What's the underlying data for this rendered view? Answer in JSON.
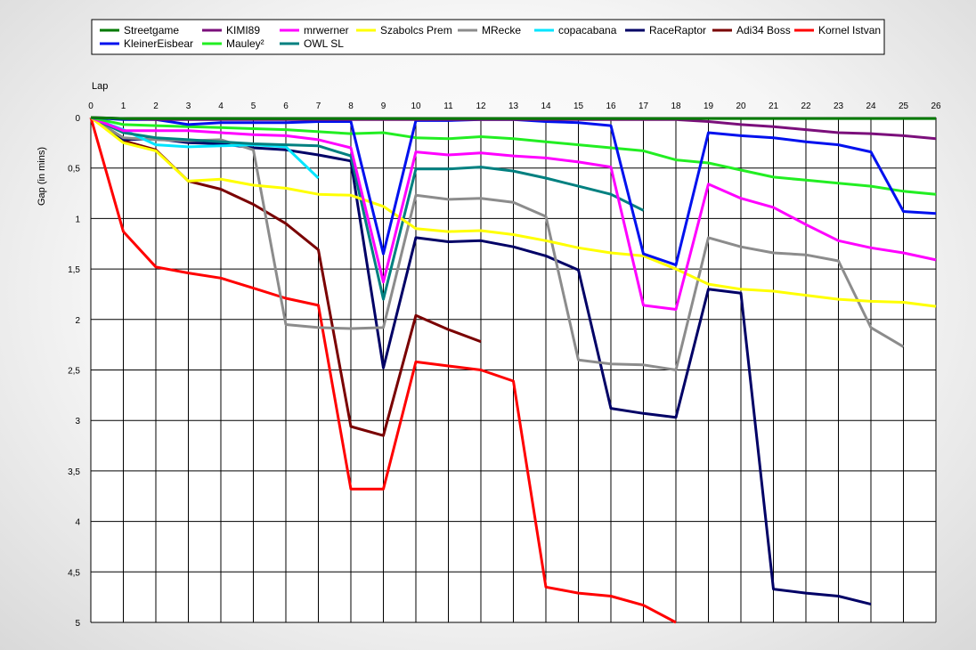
{
  "chart_data": {
    "type": "line",
    "xlabel": "Lap",
    "ylabel": "Gap (in mins)",
    "x": [
      0,
      1,
      2,
      3,
      4,
      5,
      6,
      7,
      8,
      9,
      10,
      11,
      12,
      13,
      14,
      15,
      16,
      17,
      18,
      19,
      20,
      21,
      22,
      23,
      24,
      25,
      26
    ],
    "xlim": [
      0,
      26
    ],
    "ylim": [
      0,
      5
    ],
    "y_inverted": true,
    "y_ticks": [
      "0",
      "0,5",
      "1",
      "1,5",
      "2",
      "2,5",
      "3",
      "3,5",
      "4",
      "4,5",
      "5"
    ],
    "x_ticks": [
      "0",
      "1",
      "2",
      "3",
      "4",
      "5",
      "6",
      "7",
      "8",
      "9",
      "10",
      "11",
      "12",
      "13",
      "14",
      "15",
      "16",
      "17",
      "18",
      "19",
      "20",
      "21",
      "22",
      "23",
      "24",
      "25",
      "26"
    ],
    "grid": true,
    "legend_position": "top",
    "series": [
      {
        "name": "Streetgame",
        "color": "#007a00",
        "values": [
          0,
          0.01,
          0.01,
          0.01,
          0.01,
          0.01,
          0.01,
          0.01,
          0.01,
          0.01,
          0.01,
          0.01,
          0.01,
          0.01,
          0.01,
          0.01,
          0.01,
          0.01,
          0.01,
          0.01,
          0.01,
          0.01,
          0.01,
          0.01,
          0.01,
          0.01,
          0.01
        ]
      },
      {
        "name": "KIMI89",
        "color": "#7b0f7b",
        "values": [
          0,
          0.01,
          0.02,
          0.02,
          0.02,
          0.02,
          0.02,
          0.02,
          0.02,
          0.02,
          0.02,
          0.02,
          0.02,
          0.02,
          0.02,
          0.02,
          0.02,
          0.02,
          0.02,
          0.04,
          0.07,
          0.09,
          0.12,
          0.15,
          0.16,
          0.18,
          0.21
        ]
      },
      {
        "name": "mrwerner",
        "color": "#ff00ff",
        "values": [
          0,
          0.13,
          0.13,
          0.13,
          0.15,
          0.17,
          0.18,
          0.22,
          0.3,
          1.63,
          0.34,
          0.37,
          0.35,
          0.38,
          0.4,
          0.44,
          0.49,
          1.86,
          1.9,
          0.66,
          0.8,
          0.89,
          1.06,
          1.22,
          1.29,
          1.34,
          1.41
        ]
      },
      {
        "name": "Szabolcs Prem",
        "color": "#ffff00",
        "values": [
          0,
          0.25,
          0.33,
          0.63,
          0.61,
          0.67,
          0.7,
          0.76,
          0.77,
          0.88,
          1.1,
          1.13,
          1.12,
          1.16,
          1.22,
          1.29,
          1.34,
          1.37,
          1.5,
          1.65,
          1.7,
          1.72,
          1.76,
          1.8,
          1.82,
          1.83,
          1.87
        ]
      },
      {
        "name": "MRecke",
        "color": "#8c8c8c",
        "values": [
          0,
          0.2,
          0.22,
          0.23,
          0.22,
          0.32,
          2.05,
          2.08,
          2.09,
          2.08,
          0.77,
          0.81,
          0.8,
          0.84,
          0.98,
          2.4,
          2.44,
          2.45,
          2.5,
          1.19,
          1.28,
          1.34,
          1.36,
          1.42,
          2.08,
          2.27,
          null
        ]
      },
      {
        "name": "copacabana",
        "color": "#00e5ff",
        "values": [
          0,
          0.12,
          0.27,
          0.29,
          0.28,
          0.27,
          0.29,
          0.6,
          null,
          null,
          null,
          null,
          null,
          null,
          null,
          null,
          null,
          null,
          null,
          null,
          null,
          null,
          null,
          null,
          null,
          null,
          null
        ]
      },
      {
        "name": "RaceRaptor",
        "color": "#000066",
        "values": [
          0,
          0.22,
          0.21,
          0.25,
          0.26,
          0.3,
          0.32,
          0.37,
          0.43,
          2.48,
          1.19,
          1.23,
          1.22,
          1.28,
          1.37,
          1.51,
          2.88,
          2.93,
          2.97,
          1.7,
          1.74,
          4.67,
          4.71,
          4.74,
          4.82,
          null,
          null
        ]
      },
      {
        "name": "Adi34 Boss",
        "color": "#7a0000",
        "values": [
          0,
          0.23,
          0.32,
          0.63,
          0.71,
          0.86,
          1.05,
          1.31,
          3.06,
          3.15,
          1.96,
          2.1,
          2.22,
          null,
          null,
          null,
          null,
          null,
          null,
          null,
          null,
          null,
          null,
          null,
          null,
          null,
          null
        ]
      },
      {
        "name": "Kornel Istvan",
        "color": "#ff0000",
        "values": [
          0,
          1.13,
          1.48,
          1.54,
          1.59,
          1.69,
          1.79,
          1.86,
          3.68,
          3.68,
          2.42,
          2.46,
          2.5,
          2.61,
          4.65,
          4.71,
          4.74,
          4.83,
          5.0,
          null,
          null,
          null,
          null,
          null,
          null,
          null,
          null
        ]
      },
      {
        "name": "KleinerEisbear",
        "color": "#0011ee",
        "values": [
          0,
          0.02,
          0.02,
          0.07,
          0.05,
          0.05,
          0.05,
          0.04,
          0.04,
          1.35,
          0.03,
          0.03,
          0.02,
          0.02,
          0.04,
          0.05,
          0.08,
          1.35,
          1.46,
          0.15,
          0.18,
          0.2,
          0.24,
          0.27,
          0.34,
          0.93,
          0.95
        ]
      },
      {
        "name": "Mauley²",
        "color": "#22ee22",
        "values": [
          0,
          0.07,
          0.08,
          0.09,
          0.1,
          0.11,
          0.12,
          0.14,
          0.16,
          0.15,
          0.2,
          0.21,
          0.19,
          0.21,
          0.24,
          0.27,
          0.3,
          0.33,
          0.42,
          0.45,
          0.52,
          0.59,
          0.62,
          0.65,
          0.68,
          0.73,
          0.76
        ]
      },
      {
        "name": "OWL SL",
        "color": "#008080",
        "values": [
          0,
          0.15,
          0.2,
          0.22,
          0.24,
          0.26,
          0.27,
          0.28,
          0.38,
          1.8,
          0.51,
          0.51,
          0.49,
          0.53,
          0.6,
          0.68,
          0.76,
          0.92,
          null,
          null,
          null,
          null,
          null,
          null,
          null,
          null,
          null
        ]
      }
    ]
  }
}
